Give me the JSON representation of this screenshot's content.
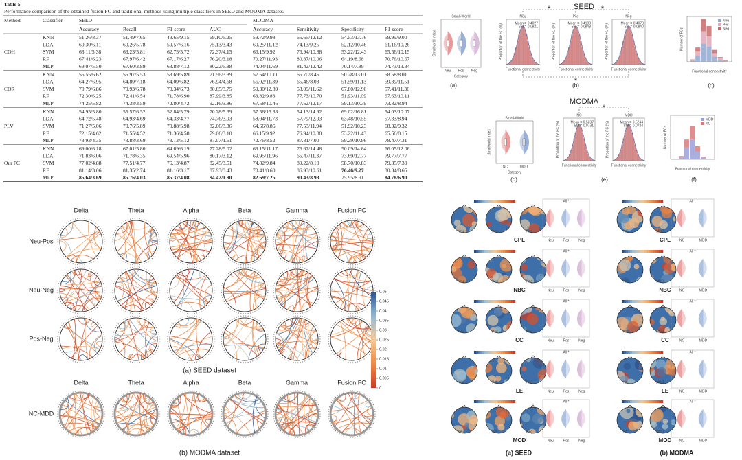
{
  "table": {
    "title": "Table 5",
    "caption": "Performance comparison of the obtained fusion FC and traditional methods using multiple classifiers in SEED and MODMA datasets.",
    "headers": [
      "Method",
      "Classifier",
      "SEED",
      "MODMA"
    ],
    "subheaders": [
      "Accuracy",
      "Recall",
      "F1-score",
      "AUC",
      "Accuracy",
      "Sensitivity",
      "Specificity",
      "F1-score"
    ],
    "groups": [
      {
        "method": "COH",
        "rows": [
          {
            "classifier": "KNN",
            "cells": [
              "51.26/8.37",
              "51.49/7.65",
              "49.65/9.15",
              "69.10/5.25",
              "59.72/9.98",
              "65.65/12.12",
              "54.53/13.76",
              "59.99/9.00"
            ]
          },
          {
            "classifier": "LDA",
            "cells": [
              "60.30/6.11",
              "60.26/5.78",
              "59.57/6.16",
              "75.13/3.43",
              "60.25/11.12",
              "74.13/9.25",
              "52.12/10.46",
              "61.16/10.26"
            ]
          },
          {
            "classifier": "SVM",
            "cells": [
              "63.11/5.38",
              "63.23/5.81",
              "62.75/5.72",
              "72.37/4.15",
              "66.15/9.92",
              "76.94/10.88",
              "53.22/12.43",
              "65.56/10.15"
            ]
          },
          {
            "classifier": "RF",
            "cells": [
              "67.41/6.23",
              "67.97/6.42",
              "67.17/6.27",
              "76.20/3.18",
              "70.27/11.93",
              "80.87/10.06",
              "64.19/8.68",
              "70.76/10.67"
            ]
          },
          {
            "classifier": "MLP",
            "cells": [
              "69.07/5.50",
              "67.60/3.89",
              "63.88/7.13",
              "80.22/5.88",
              "74.04/11.69",
              "81.42/12.42",
              "70.14/7.89",
              "74.73/13.34"
            ]
          }
        ]
      },
      {
        "method": "COR",
        "rows": [
          {
            "classifier": "KNN",
            "cells": [
              "55.55/6.62",
              "55.97/5.53",
              "53.69/5.89",
              "71.56/3.89",
              "57.54/10.11",
              "65.70/8.45",
              "50.28/13.01",
              "58.58/8.01"
            ]
          },
          {
            "classifier": "LDA",
            "cells": [
              "64.27/6.95",
              "64.89/7.18",
              "64.09/6.82",
              "76.94/4.68",
              "56.02/11.39",
              "65.46/8.03",
              "51.59/11.13",
              "59.39/11.51"
            ]
          },
          {
            "classifier": "SVM",
            "cells": [
              "70.79/6.86",
              "70.93/6.78",
              "70.34/6.73",
              "80.65/3.75",
              "59.30/12.89",
              "53.09/11.62",
              "67.80/12.90",
              "57.41/11.36"
            ]
          },
          {
            "classifier": "RF",
            "cells": [
              "72.30/6.25",
              "72.41/6.54",
              "71.78/6.90",
              "87.99/3.85",
              "63.82/9.83",
              "77.73/10.70",
              "51.93/11.09",
              "67.63/10.11"
            ]
          },
          {
            "classifier": "MLP",
            "cells": [
              "74.25/5.82",
              "74.38/3.59",
              "72.80/4.72",
              "92.16/3.86",
              "67.58/10.46",
              "77.62/12.17",
              "59.13/10.39",
              "73.82/8.94"
            ]
          }
        ]
      },
      {
        "method": "PLV",
        "rows": [
          {
            "classifier": "KNN",
            "cells": [
              "54.95/5.80",
              "55.57/6.52",
              "52.84/5.79",
              "70.28/5.39",
              "57.56/15.33",
              "54.13/14.92",
              "69.02/16.81",
              "54.03/10.07"
            ]
          },
          {
            "classifier": "LDA",
            "cells": [
              "64.72/5.48",
              "64.93/4.69",
              "64.33/4.77",
              "74.76/3.93",
              "58.04/11.73",
              "57.79/12.93",
              "63.48/10.55",
              "57.33/8.94"
            ]
          },
          {
            "classifier": "SVM",
            "cells": [
              "71.27/5.06",
              "70.76/5.89",
              "70.88/5.98",
              "82.06/3.36",
              "64.66/8.86",
              "77.53/11.94",
              "51.92/10.23",
              "68.32/9.32"
            ]
          },
          {
            "classifier": "RF",
            "cells": [
              "72.15/4.62",
              "71.55/4.52",
              "71.36/4.58",
              "79.06/3.10",
              "66.15/9.92",
              "76.94/10.88",
              "53.22/11.43",
              "65.56/8.15"
            ]
          },
          {
            "classifier": "MLP",
            "cells": [
              "73.92/4.35",
              "73.88/3.69",
              "73.12/5.12",
              "87.07/1.61",
              "72.76/8.52",
              "87.81/7.00",
              "59.29/10.96",
              "78.47/7.31"
            ]
          }
        ]
      },
      {
        "method": "Our FC",
        "rows": [
          {
            "classifier": "KNN",
            "cells": [
              "69.00/6.18",
              "67.01/5.80",
              "64.69/6.19",
              "77.28/5.02",
              "63.15/11.17",
              "76.67/14.48",
              "50.09/14.84",
              "66.05/12.06"
            ]
          },
          {
            "classifier": "LDA",
            "cells": [
              "71.83/6.06",
              "71.78/6.35",
              "69.54/5.96",
              "80.17/3.12",
              "69.95/11.96",
              "65.47/11.37",
              "73.69/12.77",
              "79.77/7.77"
            ]
          },
          {
            "classifier": "SVM",
            "cells": [
              "77.02/4.88",
              "77.51/4.77",
              "76.13/4.87",
              "82.45/3.51",
              "74.82/9.84",
              "89.22/8.10",
              "58.70/10.83",
              "79.35/7.30"
            ]
          },
          {
            "classifier": "RF",
            "cells": [
              "81.14/3.06",
              "81.35/2.74",
              "81.16/3.17",
              "87.93/3.43",
              "78.41/8.60",
              "86.93/10.61",
              "76.46/9.27",
              "80.34/8.65"
            ],
            "bold": [
              6
            ]
          },
          {
            "classifier": "MLP",
            "cells": [
              "85.64/3.69",
              "85.76/4.03",
              "85.37/4.08",
              "94.42/1.90",
              "82.69/7.25",
              "90.43/8.93",
              "75.95/8.91",
              "84.78/6.90"
            ],
            "bold": [
              0,
              1,
              2,
              3,
              4,
              5,
              7
            ]
          }
        ]
      }
    ]
  },
  "stats_figure": {
    "title_seed": "SEED",
    "title_modma": "MODMA",
    "violin_title": "Small-World",
    "violin_ylabel": "Smallworld index",
    "violin_xlabel": "Category",
    "seed_groups": [
      "Neu",
      "Pos",
      "Neg"
    ],
    "modma_groups": [
      "NC",
      "MDD"
    ],
    "modma_legend": [
      "MDD",
      "NC"
    ],
    "seed_hist_stats": [
      [
        "Mean = 0.4027",
        "Std = 0.0821"
      ],
      [
        "Mean = 0.4188",
        "Std = 0.0848"
      ],
      [
        "Mean = 0.4073",
        "Std = 0.0840"
      ]
    ],
    "modma_hist_stats": [
      [
        "Mean = 0.5237",
        "Std = 0.0731"
      ],
      [
        "Mean = 0.5244",
        "Std = 0.0734"
      ]
    ],
    "hist_ylabel": "Proportion of the FC (%)",
    "hist_xlabel": "Functional connectivity",
    "bar_ylabel": "Number of FCs",
    "bar_xlabel": "Functional connectivity",
    "star": "*",
    "panel_labels": [
      "(a)",
      "(b)",
      "(c)",
      "(d)",
      "(e)",
      "(f)"
    ]
  },
  "chord_figure": {
    "bands": [
      "Delta",
      "Theta",
      "Alpha",
      "Beta",
      "Gamma",
      "Fusion FC"
    ],
    "seed_rows": [
      "Neu-Pos",
      "Neu-Neg",
      "Pos-Neg"
    ],
    "modma_rows": [
      "NC-MDD"
    ],
    "seed_caption": "(a) SEED dataset",
    "modma_caption": "(b) MODMA dataset",
    "colorbar": {
      "lim": [
        0,
        0.05
      ],
      "ticks": [
        0.05,
        0.045,
        0.04,
        0.035,
        0.03,
        0.025,
        0.02,
        0.015,
        0.01,
        0.005,
        0
      ]
    }
  },
  "brain_figure": {
    "metrics": [
      "CPL",
      "NBC",
      "CC",
      "LE",
      "MOD"
    ],
    "seed_groups": [
      "Neu",
      "Pos",
      "Neg"
    ],
    "modma_groups": [
      "NC",
      "MDD"
    ],
    "significance": "All *",
    "seed_caption": "(a) SEED",
    "modma_caption": "(b) MODMA"
  }
}
